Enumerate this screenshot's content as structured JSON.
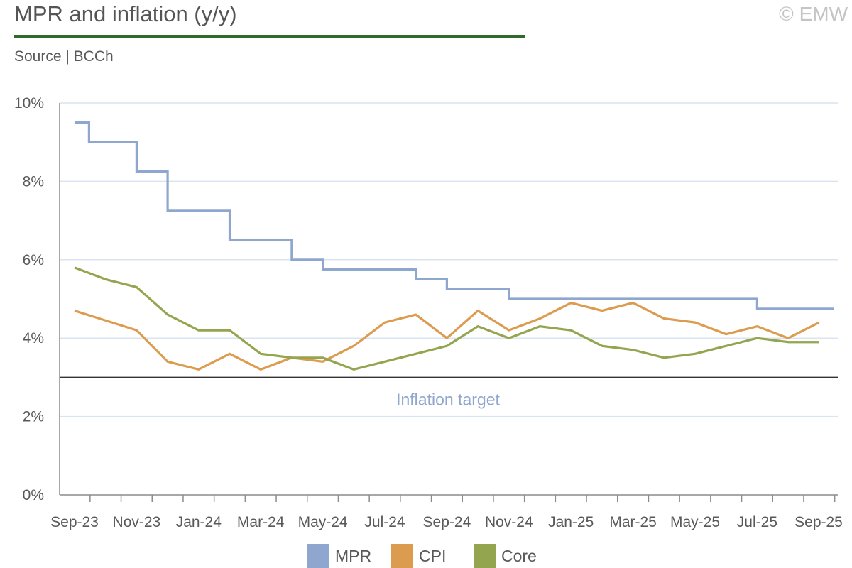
{
  "header": {
    "title": "MPR and inflation (y/y)",
    "source": "Source | BCCh",
    "copyright": "© EMW"
  },
  "colors": {
    "mpr": "#8fa7cf",
    "cpi": "#dc9c50",
    "core": "#93a54e",
    "grid": "#d9e4f1",
    "axis": "#8c8c8c",
    "target_line": "#333333",
    "target_label": "#8fa7cf"
  },
  "chart_data": {
    "type": "line",
    "title": "MPR and inflation (y/y)",
    "ylim": [
      0,
      10
    ],
    "yticks": [
      "0%",
      "2%",
      "4%",
      "6%",
      "8%",
      "10%"
    ],
    "ytick_values": [
      0,
      2,
      4,
      6,
      8,
      10
    ],
    "x_labels": [
      "Sep-23",
      "Nov-23",
      "Jan-24",
      "Mar-24",
      "May-24",
      "Jul-24",
      "Sep-24",
      "Nov-24",
      "Jan-25",
      "Mar-25",
      "May-25",
      "Jul-25",
      "Sep-25"
    ],
    "months": [
      "Sep-23",
      "Oct-23",
      "Nov-23",
      "Dec-23",
      "Jan-24",
      "Feb-24",
      "Mar-24",
      "Apr-24",
      "May-24",
      "Jun-24",
      "Jul-24",
      "Aug-24",
      "Sep-24",
      "Oct-24",
      "Nov-24",
      "Dec-24",
      "Jan-25",
      "Feb-25",
      "Mar-25",
      "Apr-25",
      "May-25",
      "Jun-25",
      "Jul-25",
      "Aug-25",
      "Sep-25"
    ],
    "grid": true,
    "legend_position": "bottom",
    "annotation": {
      "label": "Inflation target",
      "value": 3
    },
    "series": [
      {
        "name": "MPR",
        "style": "step",
        "steps": [
          {
            "date": "2023-09-01",
            "value": 9.5
          },
          {
            "date": "2023-09-15",
            "value": 9.0
          },
          {
            "date": "2023-11-01",
            "value": 8.25
          },
          {
            "date": "2023-12-01",
            "value": 7.25
          },
          {
            "date": "2024-02-01",
            "value": 6.5
          },
          {
            "date": "2024-04-01",
            "value": 6.0
          },
          {
            "date": "2024-05-01",
            "value": 5.75
          },
          {
            "date": "2024-08-01",
            "value": 5.5
          },
          {
            "date": "2024-09-01",
            "value": 5.25
          },
          {
            "date": "2024-11-01",
            "value": 5.0
          },
          {
            "date": "2025-07-01",
            "value": 4.75
          },
          {
            "date": "2025-09-15",
            "value": 4.75
          }
        ]
      },
      {
        "name": "CPI",
        "style": "line",
        "values": [
          4.7,
          null,
          4.2,
          3.4,
          3.2,
          3.6,
          3.2,
          3.5,
          3.4,
          3.8,
          4.4,
          4.6,
          4.0,
          4.7,
          4.2,
          4.5,
          4.9,
          4.7,
          4.9,
          4.5,
          4.4,
          4.1,
          4.3,
          4.0,
          4.4
        ]
      },
      {
        "name": "Core",
        "style": "line",
        "values": [
          5.8,
          5.5,
          5.3,
          4.6,
          4.2,
          4.2,
          3.6,
          3.5,
          3.5,
          3.2,
          3.4,
          3.6,
          3.8,
          4.3,
          4.0,
          4.3,
          4.2,
          3.8,
          3.7,
          3.5,
          3.6,
          3.8,
          4.0,
          3.9,
          3.9
        ]
      }
    ]
  }
}
